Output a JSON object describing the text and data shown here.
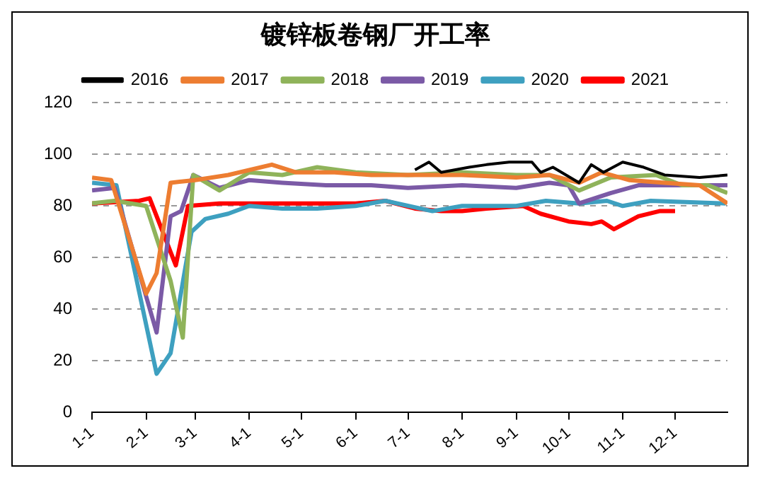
{
  "chart_data": {
    "type": "line",
    "title": "镀锌板卷钢厂开工率",
    "xlim": [
      "--01-01",
      "--12-31"
    ],
    "xticks": [
      {
        "value": "--01-01",
        "label": "1-1"
      },
      {
        "value": "--02-01",
        "label": "2-1"
      },
      {
        "value": "--03-01",
        "label": "3-1"
      },
      {
        "value": "--04-01",
        "label": "4-1"
      },
      {
        "value": "--05-01",
        "label": "5-1"
      },
      {
        "value": "--06-01",
        "label": "6-1"
      },
      {
        "value": "--07-01",
        "label": "7-1"
      },
      {
        "value": "--08-01",
        "label": "8-1"
      },
      {
        "value": "--09-01",
        "label": "9-1"
      },
      {
        "value": "--10-01",
        "label": "10-1"
      },
      {
        "value": "--11-01",
        "label": "11-1"
      },
      {
        "value": "--12-01",
        "label": "12-1"
      }
    ],
    "ylim": [
      0,
      120
    ],
    "yticks": [
      0,
      20,
      40,
      60,
      80,
      100,
      120
    ],
    "grid": "y",
    "legend": "top",
    "marker": "none",
    "line_style": "solid",
    "series": [
      {
        "name": "2016",
        "color": "#000000",
        "x": [
          "--07-05",
          "--07-13",
          "--07-20",
          "--08-05",
          "--08-15",
          "--08-28",
          "--09-10",
          "--09-15",
          "--09-22",
          "--10-07",
          "--10-14",
          "--10-21",
          "--11-01",
          "--11-13",
          "--11-25",
          "--12-15",
          "--12-31"
        ],
        "values": [
          94,
          97,
          93,
          95,
          96,
          97,
          97,
          93,
          95,
          89,
          96,
          93,
          97,
          95,
          92,
          91,
          92
        ]
      },
      {
        "name": "2017",
        "color": "#ed7d31",
        "x": [
          "--01-01",
          "--01-12",
          "--02-01",
          "--02-07",
          "--02-15",
          "--03-01",
          "--03-20",
          "--04-14",
          "--04-28",
          "--05-20",
          "--06-10",
          "--07-01",
          "--08-01",
          "--09-01",
          "--09-20",
          "--10-07",
          "--10-20",
          "--11-05",
          "--11-25",
          "--12-15",
          "--12-31"
        ],
        "values": [
          91,
          90,
          46,
          54,
          89,
          90,
          92,
          96,
          93,
          93,
          92,
          92,
          92,
          91,
          92,
          89,
          93,
          90,
          89,
          88,
          81
        ]
      },
      {
        "name": "2018",
        "color": "#8fb35a",
        "x": [
          "--01-01",
          "--01-14",
          "--02-01",
          "--02-15",
          "--02-22",
          "--02-28",
          "--03-15",
          "--04-01",
          "--04-20",
          "--05-10",
          "--06-01",
          "--07-01",
          "--08-01",
          "--09-01",
          "--09-20",
          "--10-07",
          "--10-25",
          "--11-20",
          "--12-05",
          "--12-20",
          "--12-31"
        ],
        "values": [
          81,
          82,
          80,
          51,
          29,
          92,
          86,
          93,
          92,
          95,
          93,
          92,
          93,
          92,
          92,
          86,
          91,
          92,
          88,
          88,
          85
        ]
      },
      {
        "name": "2019",
        "color": "#7b5aa6",
        "x": [
          "--01-01",
          "--01-14",
          "--02-07",
          "--02-15",
          "--02-21",
          "--02-28",
          "--03-15",
          "--04-01",
          "--04-20",
          "--05-15",
          "--06-10",
          "--07-01",
          "--08-01",
          "--09-01",
          "--09-20",
          "--10-01",
          "--10-07",
          "--10-25",
          "--11-10",
          "--12-01",
          "--12-31"
        ],
        "values": [
          86,
          87,
          31,
          76,
          78,
          92,
          87,
          90,
          89,
          88,
          88,
          87,
          88,
          87,
          89,
          88,
          81,
          85,
          88,
          88,
          88
        ]
      },
      {
        "name": "2020",
        "color": "#3ea0c0",
        "x": [
          "--01-01",
          "--01-15",
          "--02-07",
          "--02-15",
          "--02-27",
          "--03-07",
          "--03-20",
          "--04-01",
          "--04-20",
          "--05-10",
          "--06-01",
          "--06-18",
          "--07-15",
          "--08-01",
          "--09-01",
          "--09-18",
          "--10-07",
          "--10-23",
          "--11-01",
          "--11-17",
          "--12-30"
        ],
        "values": [
          89,
          88,
          15,
          23,
          70,
          75,
          77,
          80,
          79,
          79,
          80,
          82,
          78,
          80,
          80,
          82,
          81,
          82,
          80,
          82,
          81
        ]
      },
      {
        "name": "2021",
        "color": "#ff0000",
        "x": [
          "--01-01",
          "--01-28",
          "--02-03",
          "--02-18",
          "--02-25",
          "--03-15",
          "--06-01",
          "--06-18",
          "--07-05",
          "--07-20",
          "--08-01",
          "--08-15",
          "--09-05",
          "--09-15",
          "--10-01",
          "--10-14",
          "--10-20",
          "--10-27",
          "--11-10",
          "--11-22",
          "--12-01"
        ],
        "values": [
          81,
          82,
          83,
          57,
          80,
          81,
          81,
          82,
          79,
          78,
          78,
          79,
          80,
          77,
          74,
          73,
          74,
          71,
          76,
          78,
          78
        ]
      }
    ]
  }
}
